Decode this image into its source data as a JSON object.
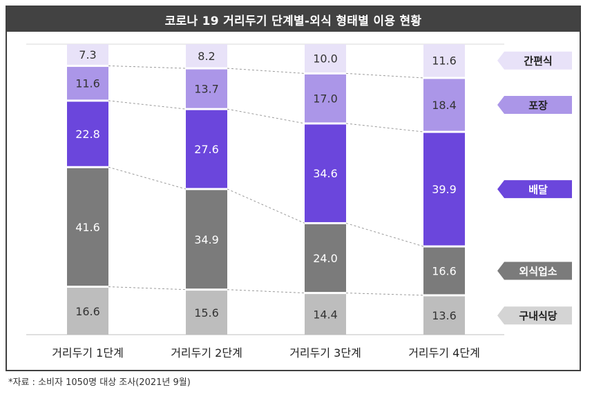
{
  "title": "코로나 19 거리두기 단계별-외식 형태별 이용 현황",
  "footnote": "*자료 : 소비자 1050명 대상 조사(2021년 9월)",
  "chart_data": {
    "type": "bar",
    "stacked": true,
    "percent_stacked": true,
    "categories": [
      "거리두기 1단계",
      "거리두기 2단계",
      "거리두기 3단계",
      "거리두기 4단계"
    ],
    "series": [
      {
        "name": "구내식당",
        "color": "#bdbdbd",
        "label_color": "#333333",
        "tag_color": "#d4d4d4",
        "tag_text_color": "#222222",
        "values": [
          16.6,
          15.6,
          14.4,
          13.6
        ]
      },
      {
        "name": "외식업소",
        "color": "#7b7b7b",
        "label_color": "#ffffff",
        "tag_color": "#7b7b7b",
        "tag_text_color": "#ffffff",
        "values": [
          41.6,
          34.9,
          24.0,
          16.6
        ]
      },
      {
        "name": "배달",
        "color": "#6b46dc",
        "label_color": "#ffffff",
        "tag_color": "#6b46dc",
        "tag_text_color": "#ffffff",
        "values": [
          22.8,
          27.6,
          34.6,
          39.9
        ]
      },
      {
        "name": "포장",
        "color": "#ab96e8",
        "label_color": "#333333",
        "tag_color": "#ab96e8",
        "tag_text_color": "#222222",
        "values": [
          11.6,
          13.7,
          17.0,
          18.4
        ]
      },
      {
        "name": "간편식",
        "color": "#e8e2f8",
        "label_color": "#333333",
        "tag_color": "#e8e2f8",
        "tag_text_color": "#222222",
        "values": [
          7.3,
          8.2,
          10.0,
          11.6
        ]
      }
    ],
    "ylim": [
      0,
      100
    ],
    "grid": false,
    "legend": "right",
    "connector_lines": true
  }
}
